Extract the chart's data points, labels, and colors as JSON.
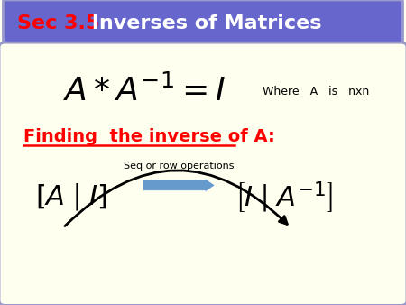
{
  "bg_color": "#FFFFF0",
  "header_bg": "#6666CC",
  "header_text_sec": "Sec 3.5",
  "header_text_sec_color": "#FF0000",
  "header_text_rest": " Inverses of Matrices",
  "header_text_color": "#FFFFFF",
  "where_text": "Where   A   is   nxn",
  "finding_text": "Finding  the inverse of A:",
  "finding_color": "#FF0000",
  "arrow_color": "#6699CC",
  "arrow_label": "Seq or row operations",
  "curve_color": "#000000",
  "border_color": "#9999CC",
  "content_bg": "#FFFFF0"
}
